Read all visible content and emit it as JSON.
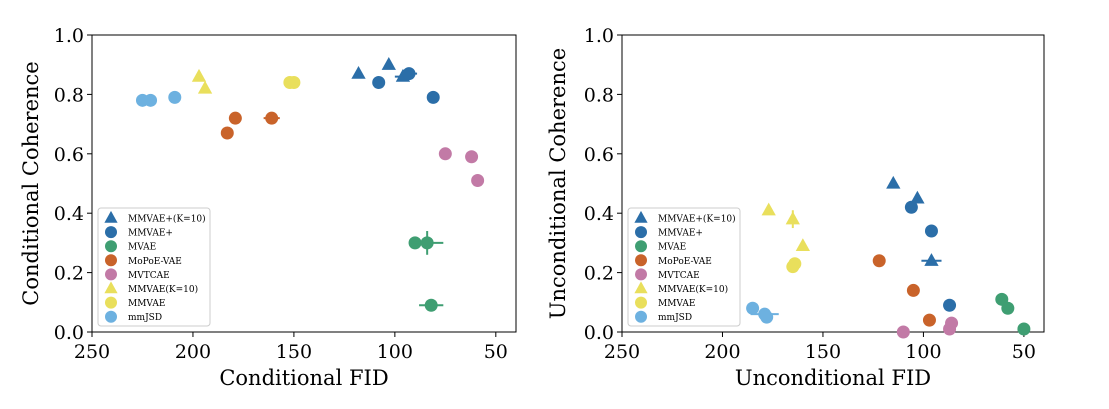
{
  "chart_data": [
    {
      "type": "scatter",
      "xlabel": "Conditional FID",
      "ylabel": "Conditional Coherence",
      "xlim": [
        250,
        40
      ],
      "ylim": [
        0.0,
        1.0
      ],
      "x_reversed": true,
      "xticks": [
        250,
        200,
        150,
        100,
        50
      ],
      "yticks": [
        0.0,
        0.2,
        0.4,
        0.6,
        0.8,
        1.0
      ],
      "legend_position": "lower-left",
      "series": [
        {
          "name": "MMVAE+(K=10)",
          "marker": "triangle",
          "color": "#2b6ea8",
          "points": [
            {
              "x": 118,
              "y": 0.87
            },
            {
              "x": 103,
              "y": 0.9
            },
            {
              "x": 96,
              "y": 0.86,
              "xerr": 4
            }
          ]
        },
        {
          "name": "MMVAE+",
          "marker": "circle",
          "color": "#2b6ea8",
          "points": [
            {
              "x": 108,
              "y": 0.84
            },
            {
              "x": 93,
              "y": 0.87,
              "xerr": 4
            },
            {
              "x": 81,
              "y": 0.79
            }
          ]
        },
        {
          "name": "MVAE",
          "marker": "circle",
          "color": "#3f9e72",
          "points": [
            {
              "x": 90,
              "y": 0.3
            },
            {
              "x": 84,
              "y": 0.3,
              "xerr": 8,
              "yerr": 0.04
            },
            {
              "x": 82,
              "y": 0.09,
              "xerr": 6
            }
          ]
        },
        {
          "name": "MoPoE-VAE",
          "marker": "circle",
          "color": "#c9632a",
          "points": [
            {
              "x": 183,
              "y": 0.67
            },
            {
              "x": 179,
              "y": 0.72
            },
            {
              "x": 161,
              "y": 0.72,
              "xerr": 4
            }
          ]
        },
        {
          "name": "MVTCAE",
          "marker": "circle",
          "color": "#c27aa6",
          "points": [
            {
              "x": 75,
              "y": 0.6
            },
            {
              "x": 62,
              "y": 0.59
            },
            {
              "x": 59,
              "y": 0.51
            }
          ]
        },
        {
          "name": "MMVAE(K=10)",
          "marker": "triangle",
          "color": "#e9df5c",
          "points": [
            {
              "x": 197,
              "y": 0.86
            },
            {
              "x": 194,
              "y": 0.82
            }
          ]
        },
        {
          "name": "MMVAE",
          "marker": "circle",
          "color": "#e9df5c",
          "points": [
            {
              "x": 152,
              "y": 0.84
            },
            {
              "x": 150,
              "y": 0.84
            }
          ]
        },
        {
          "name": "mmJSD",
          "marker": "circle",
          "color": "#6db1e0",
          "points": [
            {
              "x": 225,
              "y": 0.78,
              "xerr": 3
            },
            {
              "x": 221,
              "y": 0.78
            },
            {
              "x": 209,
              "y": 0.79
            }
          ]
        }
      ]
    },
    {
      "type": "scatter",
      "xlabel": "Unconditional FID",
      "ylabel": "Unconditional Coherence",
      "xlim": [
        250,
        40
      ],
      "ylim": [
        0.0,
        1.0
      ],
      "x_reversed": true,
      "xticks": [
        250,
        200,
        150,
        100,
        50
      ],
      "yticks": [
        0.0,
        0.2,
        0.4,
        0.6,
        0.8,
        1.0
      ],
      "legend_position": "lower-left",
      "series": [
        {
          "name": "MMVAE+(K=10)",
          "marker": "triangle",
          "color": "#2b6ea8",
          "points": [
            {
              "x": 115,
              "y": 0.5
            },
            {
              "x": 103,
              "y": 0.45
            },
            {
              "x": 96,
              "y": 0.24,
              "xerr": 5
            }
          ]
        },
        {
          "name": "MMVAE+",
          "marker": "circle",
          "color": "#2b6ea8",
          "points": [
            {
              "x": 106,
              "y": 0.42
            },
            {
              "x": 96,
              "y": 0.34
            },
            {
              "x": 87,
              "y": 0.09
            }
          ]
        },
        {
          "name": "MVAE",
          "marker": "circle",
          "color": "#3f9e72",
          "points": [
            {
              "x": 61,
              "y": 0.11
            },
            {
              "x": 58,
              "y": 0.08
            },
            {
              "x": 50,
              "y": 0.01
            }
          ]
        },
        {
          "name": "MoPoE-VAE",
          "marker": "circle",
          "color": "#c9632a",
          "points": [
            {
              "x": 122,
              "y": 0.24
            },
            {
              "x": 105,
              "y": 0.14
            },
            {
              "x": 97,
              "y": 0.04
            }
          ]
        },
        {
          "name": "MVTCAE",
          "marker": "circle",
          "color": "#c27aa6",
          "points": [
            {
              "x": 110,
              "y": 0.0
            },
            {
              "x": 87,
              "y": 0.01
            },
            {
              "x": 86,
              "y": 0.03
            }
          ]
        },
        {
          "name": "MMVAE(K=10)",
          "marker": "triangle",
          "color": "#e9df5c",
          "points": [
            {
              "x": 177,
              "y": 0.41
            },
            {
              "x": 165,
              "y": 0.38,
              "yerr": 0.03
            },
            {
              "x": 160,
              "y": 0.29
            }
          ]
        },
        {
          "name": "MMVAE",
          "marker": "circle",
          "color": "#e9df5c",
          "points": [
            {
              "x": 165,
              "y": 0.22
            },
            {
              "x": 164,
              "y": 0.23
            }
          ]
        },
        {
          "name": "mmJSD",
          "marker": "circle",
          "color": "#6db1e0",
          "points": [
            {
              "x": 185,
              "y": 0.08
            },
            {
              "x": 179,
              "y": 0.06,
              "xerr": 7
            },
            {
              "x": 178,
              "y": 0.05
            }
          ]
        }
      ]
    }
  ]
}
